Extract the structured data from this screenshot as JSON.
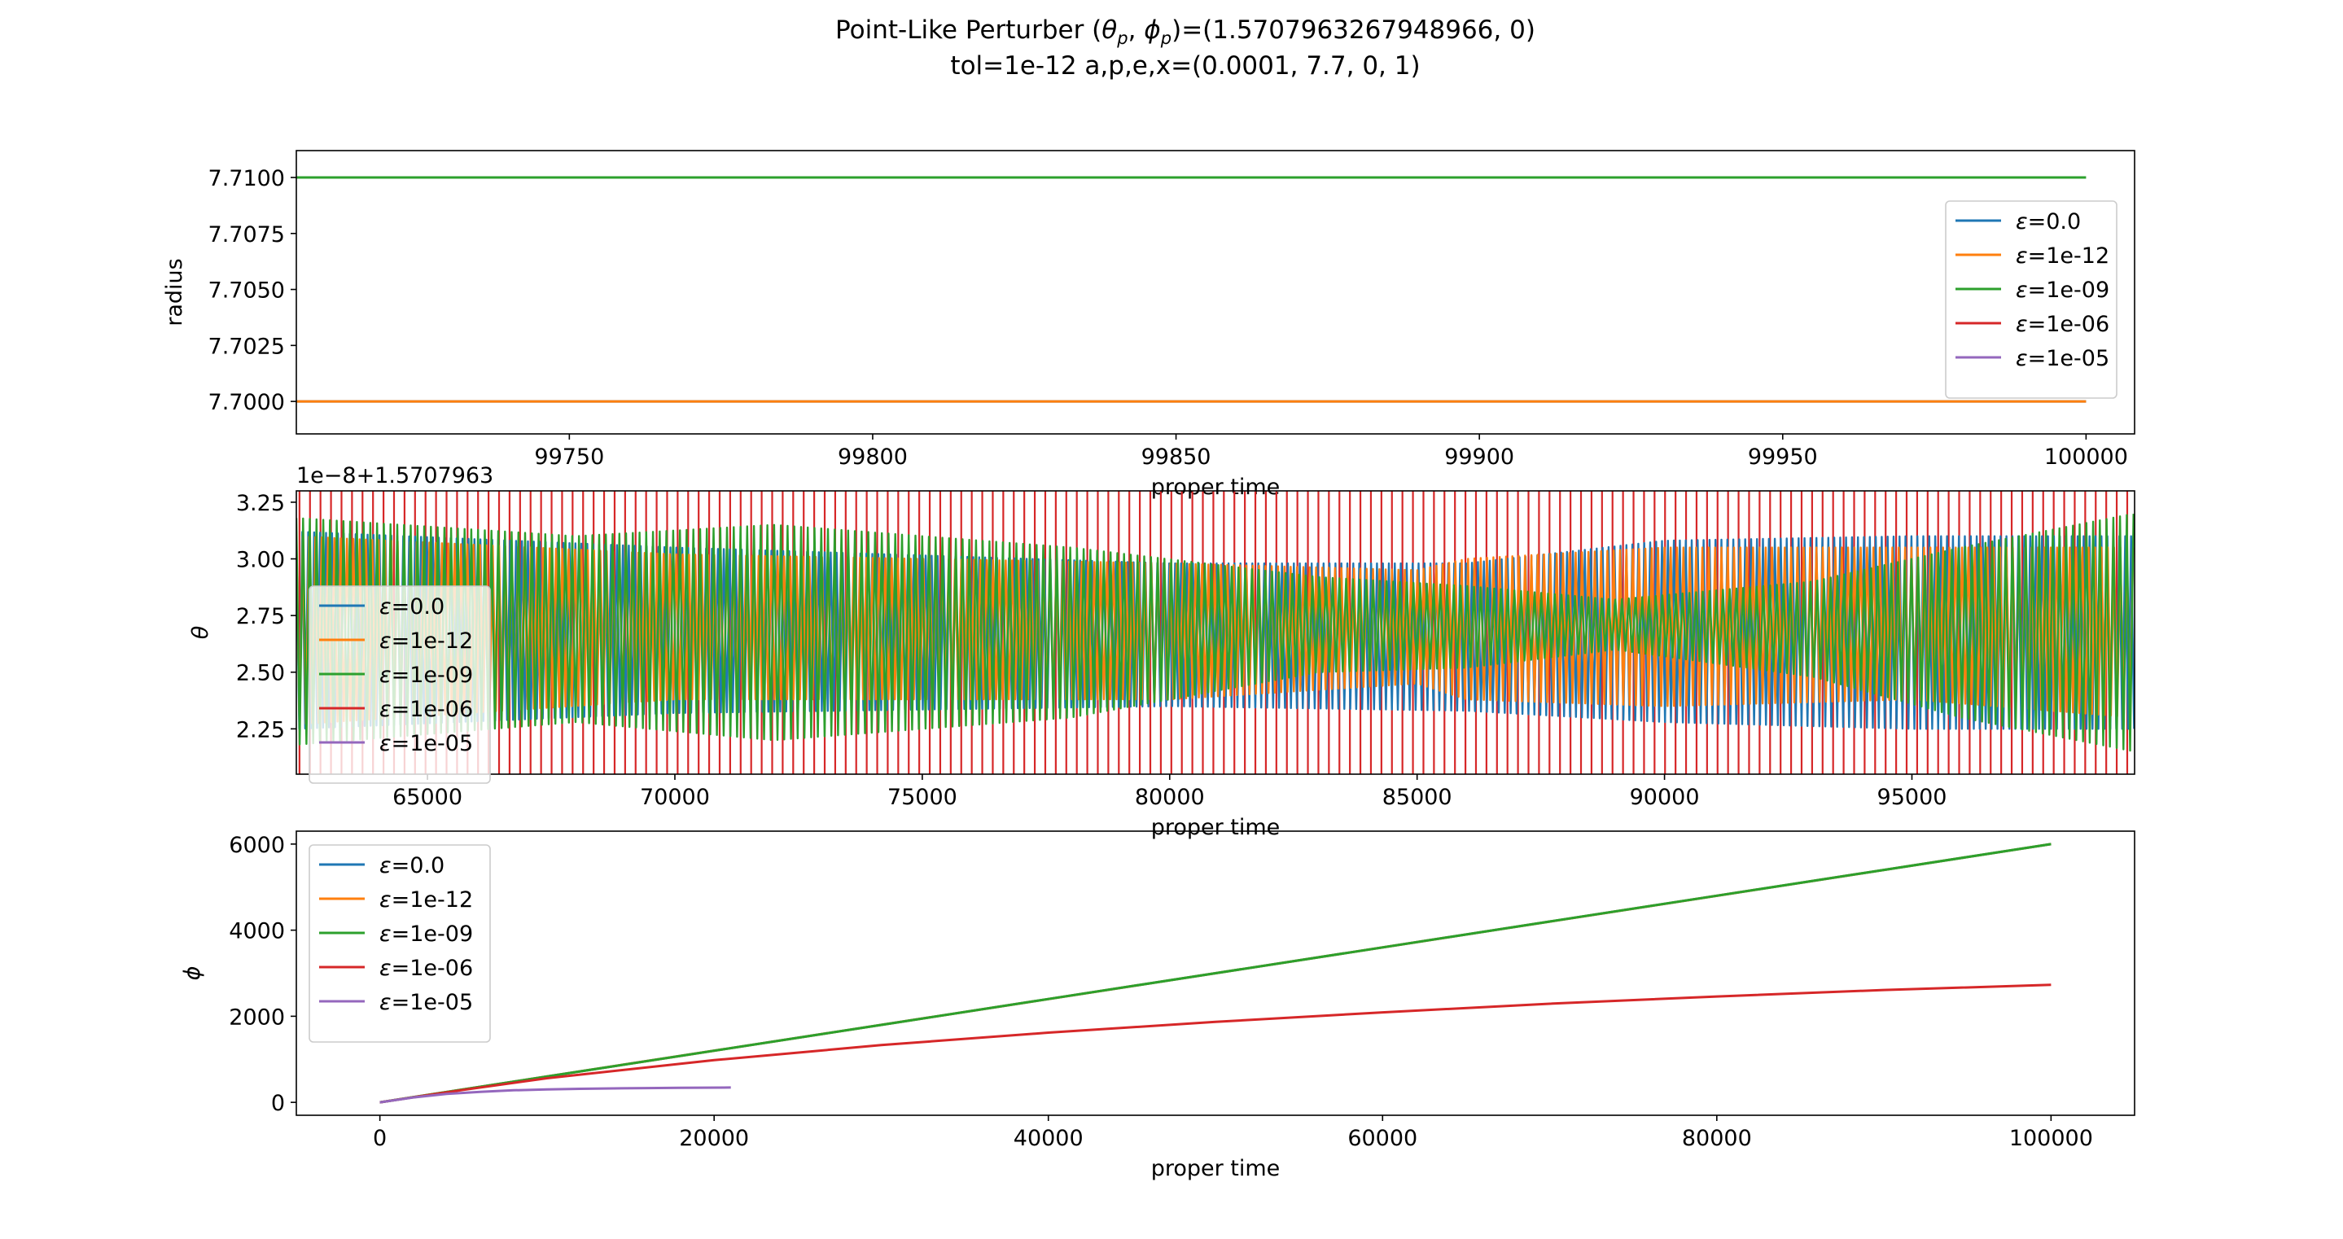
{
  "figure": {
    "title_prefix": "Point-Like Perturber (",
    "title_theta": "θ",
    "title_phi": "ϕ",
    "title_sub": "p",
    "title_suffix": ")=(1.5707963267948966, 0)",
    "title_line2": "tol=1e-12 a,p,e,x=(0.0001, 7.7, 0, 1)"
  },
  "legend_labels": [
    "ε=0.0",
    "ε=1e-12",
    "ε=1e-09",
    "ε=1e-06",
    "ε=1e-05"
  ],
  "colors": {
    "eps_0": "#1f77b4",
    "eps_1e-12": "#ff7f0e",
    "eps_1e-09": "#2ca02c",
    "eps_1e-06": "#d62728",
    "eps_1e-05": "#9467bd"
  },
  "chart_data": [
    {
      "type": "line",
      "xlabel": "proper time",
      "ylabel": "radius",
      "xlim": [
        99705,
        100008
      ],
      "ylim": [
        7.69855,
        7.7112
      ],
      "xticks": [
        99750,
        99800,
        99850,
        99900,
        99950,
        100000
      ],
      "yticks": [
        7.7,
        7.7025,
        7.705,
        7.7075,
        7.71
      ],
      "ytick_labels": [
        "7.7000",
        "7.7025",
        "7.7050",
        "7.7075",
        "7.7100"
      ],
      "legend": "center right",
      "series": [
        {
          "name": "ε=0.0",
          "color": "#1f77b4",
          "x": [
            99705,
            100000
          ],
          "y": [
            7.7,
            7.7
          ]
        },
        {
          "name": "ε=1e-12",
          "color": "#ff7f0e",
          "x": [
            99705,
            100000
          ],
          "y": [
            7.7,
            7.7
          ]
        },
        {
          "name": "ε=1e-09",
          "color": "#2ca02c",
          "x": [
            99705,
            99850,
            100000
          ],
          "y": [
            7.71,
            7.71,
            7.71
          ]
        },
        {
          "name": "ε=1e-06",
          "color": "#d62728",
          "x": [],
          "y": []
        },
        {
          "name": "ε=1e-05",
          "color": "#9467bd",
          "x": [],
          "y": []
        }
      ]
    },
    {
      "type": "line",
      "xlabel": "proper time",
      "ylabel": "θ",
      "offset_text": "1e−8+1.5707963",
      "xlim": [
        62350,
        99500
      ],
      "ylim": [
        2.05,
        3.3
      ],
      "xticks": [
        65000,
        70000,
        75000,
        80000,
        85000,
        90000,
        95000
      ],
      "yticks": [
        2.25,
        2.5,
        2.75,
        3.0,
        3.25
      ],
      "ytick_labels": [
        "2.25",
        "2.50",
        "2.75",
        "3.00",
        "3.25"
      ],
      "legend": "lower left",
      "oscillation": {
        "center": 2.68,
        "eps_0": {
          "upper": [
            [
              62350,
              3.12
            ],
            [
              70000,
              3.05
            ],
            [
              80000,
              2.98
            ],
            [
              86000,
              2.98
            ],
            [
              90000,
              3.08
            ],
            [
              95000,
              3.1
            ],
            [
              99500,
              3.1
            ]
          ],
          "lower": [
            [
              62350,
              2.25
            ],
            [
              70000,
              2.32
            ],
            [
              80000,
              2.35
            ],
            [
              86000,
              2.33
            ],
            [
              90000,
              2.28
            ],
            [
              95000,
              2.25
            ],
            [
              99500,
              2.25
            ]
          ]
        },
        "eps_1e-12": {
          "upper": [
            [
              62350,
              3.1
            ],
            [
              70000,
              3.02
            ],
            [
              80000,
              2.98
            ],
            [
              85000,
              2.95
            ],
            [
              86000,
              3.0
            ],
            [
              90000,
              3.05
            ],
            [
              95000,
              3.05
            ],
            [
              99500,
              3.05
            ]
          ],
          "lower": [
            [
              62350,
              2.27
            ],
            [
              70000,
              2.38
            ],
            [
              80000,
              2.38
            ],
            [
              85000,
              2.45
            ],
            [
              86000,
              2.38
            ],
            [
              90000,
              2.35
            ],
            [
              95000,
              2.38
            ],
            [
              99500,
              2.3
            ]
          ]
        },
        "eps_1e-09": {
          "upper": [
            [
              62350,
              3.18
            ],
            [
              68000,
              3.1
            ],
            [
              72000,
              3.15
            ],
            [
              78000,
              3.05
            ],
            [
              83000,
              2.92
            ],
            [
              86000,
              2.88
            ],
            [
              89000,
              2.82
            ],
            [
              93000,
              2.9
            ],
            [
              96000,
              3.05
            ],
            [
              99500,
              3.2
            ]
          ],
          "lower": [
            [
              62350,
              2.18
            ],
            [
              68000,
              2.28
            ],
            [
              72000,
              2.2
            ],
            [
              78000,
              2.3
            ],
            [
              83000,
              2.5
            ],
            [
              86000,
              2.52
            ],
            [
              89000,
              2.6
            ],
            [
              93000,
              2.48
            ],
            [
              96000,
              2.3
            ],
            [
              99500,
              2.15
            ]
          ]
        }
      },
      "red_vertical_line_count": 175,
      "series": [
        {
          "name": "ε=0.0",
          "color": "#1f77b4"
        },
        {
          "name": "ε=1e-12",
          "color": "#ff7f0e"
        },
        {
          "name": "ε=1e-09",
          "color": "#2ca02c"
        },
        {
          "name": "ε=1e-06",
          "color": "#d62728"
        },
        {
          "name": "ε=1e-05",
          "color": "#9467bd"
        }
      ]
    },
    {
      "type": "line",
      "xlabel": "proper time",
      "ylabel": "ϕ",
      "xlim": [
        -5000,
        105000
      ],
      "ylim": [
        -300,
        6300
      ],
      "xticks": [
        0,
        20000,
        40000,
        60000,
        80000,
        100000
      ],
      "yticks": [
        0,
        2000,
        4000,
        6000
      ],
      "legend": "upper left",
      "series": [
        {
          "name": "ε=0.0",
          "color": "#1f77b4",
          "x": [
            0,
            100000
          ],
          "y": [
            0,
            6000
          ]
        },
        {
          "name": "ε=1e-12",
          "color": "#ff7f0e",
          "x": [
            0,
            100000
          ],
          "y": [
            0,
            6000
          ]
        },
        {
          "name": "ε=1e-09",
          "color": "#2ca02c",
          "x": [
            0,
            10000,
            20000,
            30000,
            40000,
            50000,
            60000,
            70000,
            80000,
            90000,
            100000
          ],
          "y": [
            0,
            600,
            1200,
            1800,
            2400,
            3000,
            3600,
            4200,
            4800,
            5400,
            6000
          ]
        },
        {
          "name": "ε=1e-06",
          "color": "#d62728",
          "x": [
            0,
            5000,
            10000,
            20000,
            30000,
            40000,
            50000,
            60000,
            70000,
            80000,
            90000,
            100000
          ],
          "y": [
            0,
            290,
            560,
            980,
            1330,
            1620,
            1870,
            2090,
            2290,
            2460,
            2610,
            2730
          ]
        },
        {
          "name": "ε=1e-05",
          "color": "#9467bd",
          "x": [
            0,
            2000,
            4000,
            6000,
            8000,
            10000,
            12000,
            14000,
            16000,
            18000,
            21000
          ],
          "y": [
            0,
            115,
            195,
            245,
            280,
            300,
            315,
            325,
            332,
            338,
            345
          ]
        }
      ]
    }
  ]
}
